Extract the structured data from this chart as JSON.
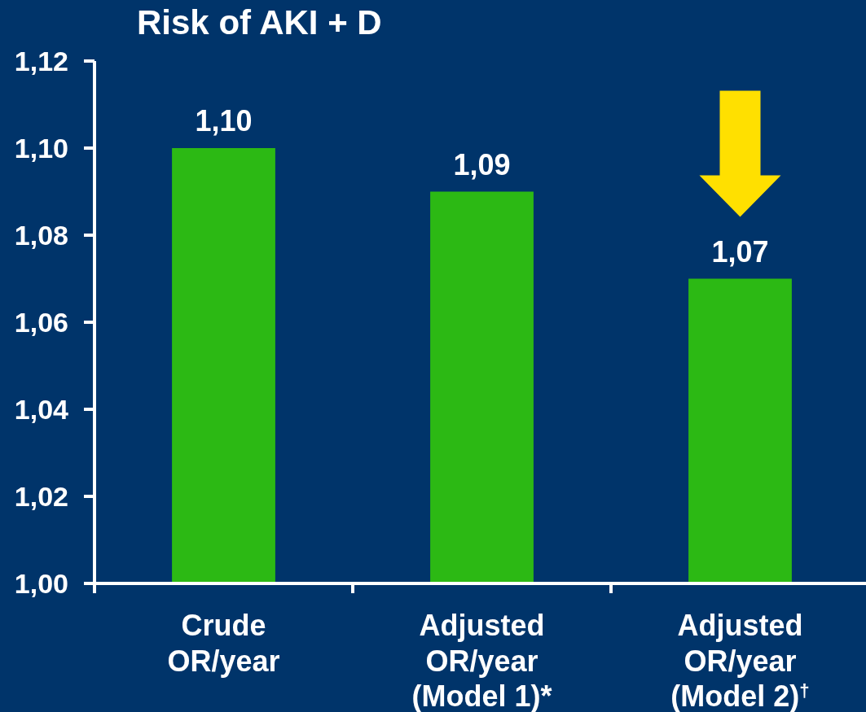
{
  "chart_data": {
    "type": "bar",
    "title": "Risk of AKI + D",
    "categories": [
      "Crude OR/year",
      "Adjusted OR/year (Model 1)*",
      "Adjusted OR/year (Model 2)$^{†}$"
    ],
    "values": [
      1.1,
      1.09,
      1.07
    ],
    "color": "#2cb914",
    "value_labels": [
      "1,10",
      "1,09",
      "1,07"
    ],
    "ylim": [
      1.0,
      1.12
    ],
    "yticks": [
      {
        "value": 1.0,
        "label": "1,00"
      },
      {
        "value": 1.02,
        "label": "1,02"
      },
      {
        "value": 1.04,
        "label": "1,04"
      },
      {
        "value": 1.06,
        "label": "1,06"
      },
      {
        "value": 1.08,
        "label": "1,08"
      },
      {
        "value": 1.1,
        "label": "1,10"
      },
      {
        "value": 1.12,
        "label": "1,12"
      }
    ]
  }
}
